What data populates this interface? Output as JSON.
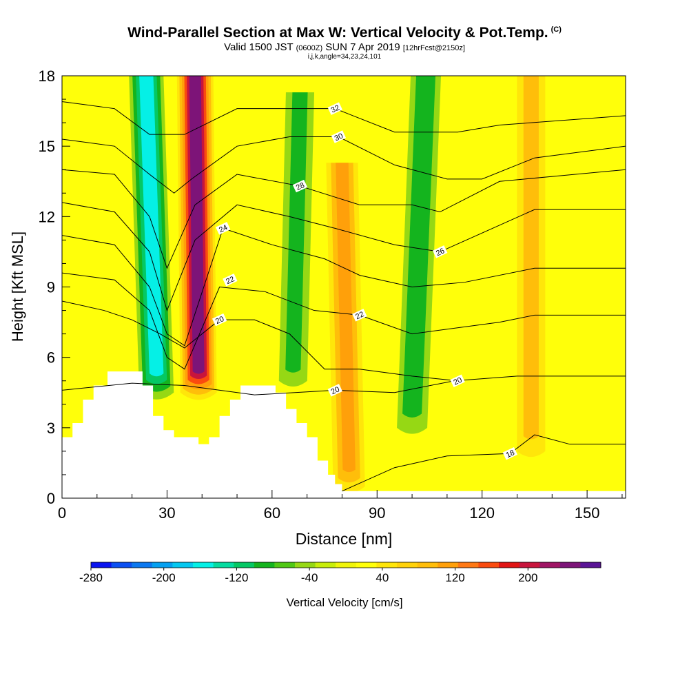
{
  "header": {
    "title": "Wind-Parallel Section at Max W: Vertical Velocity & Pot.Temp.",
    "copyright": "(C)",
    "valid_prefix": "Valid 1500 JST",
    "valid_utc": "(0600Z)",
    "valid_date": "SUN 7 Apr 2019",
    "forecast": "[12hrFcst@2150z]",
    "indices": "i,j,k,angle=34,23,24,101"
  },
  "colors": {
    "w_scale": [
      "#0a14f0",
      "#0c50f2",
      "#0c78f0",
      "#05a0f0",
      "#05c8f0",
      "#05f0e6",
      "#05dca0",
      "#05c864",
      "#14b41e",
      "#50c814",
      "#96d814",
      "#c8ee0a",
      "#f0f50a",
      "#ffff0a",
      "#ffe60a",
      "#ffd20a",
      "#ffbe0a",
      "#ffa00a",
      "#ff7814",
      "#fa4b0f",
      "#e11414",
      "#c8143c",
      "#a01464",
      "#7d1478",
      "#5a1496"
    ]
  },
  "chart_data": {
    "type": "heatmap",
    "xlabel": "Distance [nm]",
    "ylabel": "Height [Kft MSL]",
    "xlim": [
      0,
      161
    ],
    "ylim": [
      0,
      18
    ],
    "xticks": [
      0,
      30,
      60,
      90,
      120,
      150
    ],
    "yticks": [
      0,
      3,
      6,
      9,
      12,
      15,
      18
    ],
    "colorbar": {
      "label": "Vertical Velocity [cm/s]",
      "min": -280,
      "max": 280,
      "tick_values": [
        -280,
        -200,
        -120,
        -40,
        40,
        120,
        200
      ],
      "tick_labels": [
        "-280",
        "-200",
        "-120",
        "-40",
        "40",
        "120",
        "200"
      ]
    },
    "terrain": [
      [
        0,
        2.6
      ],
      [
        3,
        2.6
      ],
      [
        3,
        3.2
      ],
      [
        6,
        3.2
      ],
      [
        6,
        4.2
      ],
      [
        9,
        4.2
      ],
      [
        9,
        4.8
      ],
      [
        13,
        4.8
      ],
      [
        13,
        5.4
      ],
      [
        23,
        5.4
      ],
      [
        23,
        4.8
      ],
      [
        26,
        4.8
      ],
      [
        26,
        3.5
      ],
      [
        29,
        3.5
      ],
      [
        29,
        2.9
      ],
      [
        32,
        2.9
      ],
      [
        32,
        2.6
      ],
      [
        39,
        2.6
      ],
      [
        39,
        2.3
      ],
      [
        42,
        2.3
      ],
      [
        42,
        2.6
      ],
      [
        45,
        2.6
      ],
      [
        45,
        3.5
      ],
      [
        48,
        3.5
      ],
      [
        48,
        4.2
      ],
      [
        51,
        4.2
      ],
      [
        51,
        4.8
      ],
      [
        61,
        4.8
      ],
      [
        61,
        4.5
      ],
      [
        64,
        4.5
      ],
      [
        64,
        3.8
      ],
      [
        67,
        3.8
      ],
      [
        67,
        3.2
      ],
      [
        70,
        3.2
      ],
      [
        70,
        2.6
      ],
      [
        73,
        2.6
      ],
      [
        73,
        1.6
      ],
      [
        76,
        1.6
      ],
      [
        76,
        1.0
      ],
      [
        78,
        1.0
      ],
      [
        78,
        0.6
      ],
      [
        80,
        0.6
      ],
      [
        80,
        0.3
      ],
      [
        161,
        0.3
      ]
    ],
    "w_features": [
      {
        "kind": "updraft",
        "peak_cm_s": 270,
        "x_top": 38,
        "x_bottom": 39,
        "y_top": 18,
        "y_bottom": 4.5
      },
      {
        "kind": "downdraft",
        "peak_cm_s": -190,
        "x_top": 24,
        "x_bottom": 27,
        "y_top": 18,
        "y_bottom": 4.5
      },
      {
        "kind": "downdraft",
        "peak_cm_s": -90,
        "x_top": 68,
        "x_bottom": 66,
        "y_top": 17,
        "y_bottom": 5
      },
      {
        "kind": "updraft",
        "peak_cm_s": 130,
        "x_top": 80,
        "x_bottom": 82,
        "y_top": 14,
        "y_bottom": 0.5
      },
      {
        "kind": "downdraft",
        "peak_cm_s": -110,
        "x_top": 104,
        "x_bottom": 100,
        "y_top": 18,
        "y_bottom": 3
      },
      {
        "kind": "updraft",
        "peak_cm_s": 90,
        "x_top": 134,
        "x_bottom": 134,
        "y_top": 18,
        "y_bottom": 2
      }
    ],
    "theta_contours": [
      {
        "label": "18",
        "label_at": [
          128,
          1.9
        ],
        "points": [
          [
            80,
            0.3
          ],
          [
            95,
            1.3
          ],
          [
            110,
            1.8
          ],
          [
            128,
            1.9
          ],
          [
            135,
            2.7
          ],
          [
            145,
            2.3
          ],
          [
            161,
            2.3
          ]
        ]
      },
      {
        "label": "20",
        "label_at": [
          78,
          4.6
        ],
        "points": [
          [
            0,
            4.6
          ],
          [
            20,
            4.9
          ],
          [
            35,
            4.8
          ],
          [
            55,
            4.4
          ],
          [
            78,
            4.6
          ],
          [
            95,
            4.5
          ],
          [
            112,
            5.0
          ],
          [
            130,
            5.2
          ],
          [
            161,
            5.2
          ]
        ]
      },
      {
        "label": "20",
        "label_at": [
          45,
          7.6
        ],
        "points": [
          [
            0,
            8.4
          ],
          [
            12,
            8.0
          ],
          [
            20,
            7.6
          ],
          [
            28,
            7.0
          ],
          [
            35,
            6.4
          ],
          [
            45,
            7.6
          ],
          [
            55,
            7.6
          ],
          [
            65,
            7.0
          ],
          [
            75,
            5.5
          ],
          [
            85,
            5.5
          ]
        ]
      },
      {
        "label": "20",
        "label_at": [
          113,
          5.0
        ],
        "points": [
          [
            85,
            5.5
          ],
          [
            100,
            5.2
          ],
          [
            113,
            5.0
          ]
        ]
      },
      {
        "label": "22",
        "label_at": [
          85,
          7.8
        ],
        "points": [
          [
            0,
            9.6
          ],
          [
            15,
            9.3
          ],
          [
            25,
            8.0
          ],
          [
            30,
            6.0
          ],
          [
            35,
            5.5
          ],
          [
            45,
            9.0
          ],
          [
            58,
            8.8
          ],
          [
            72,
            8.0
          ],
          [
            85,
            7.8
          ],
          [
            100,
            7.0
          ],
          [
            125,
            7.5
          ],
          [
            135,
            7.8
          ],
          [
            161,
            7.8
          ]
        ]
      },
      {
        "label": "22",
        "label_at": [
          48,
          9.3
        ],
        "points": []
      },
      {
        "label": "24",
        "label_at": [
          46,
          11.5
        ],
        "points": [
          [
            0,
            11.2
          ],
          [
            15,
            10.8
          ],
          [
            25,
            9.0
          ],
          [
            30,
            7.0
          ],
          [
            35,
            6.5
          ],
          [
            46,
            11.5
          ],
          [
            60,
            10.8
          ],
          [
            75,
            10.2
          ],
          [
            85,
            9.5
          ],
          [
            100,
            9.0
          ],
          [
            115,
            9.2
          ],
          [
            135,
            9.8
          ],
          [
            161,
            9.8
          ]
        ]
      },
      {
        "label": "26",
        "label_at": [
          108,
          10.5
        ],
        "points": [
          [
            0,
            12.6
          ],
          [
            15,
            12.2
          ],
          [
            25,
            10.5
          ],
          [
            30,
            8.0
          ],
          [
            38,
            11.0
          ],
          [
            50,
            12.5
          ],
          [
            65,
            12.0
          ],
          [
            78,
            11.5
          ],
          [
            95,
            10.8
          ],
          [
            108,
            10.5
          ],
          [
            120,
            11.3
          ],
          [
            135,
            12.3
          ],
          [
            161,
            12.3
          ]
        ]
      },
      {
        "label": "28",
        "label_at": [
          68,
          13.3
        ],
        "points": [
          [
            0,
            14.0
          ],
          [
            15,
            13.8
          ],
          [
            25,
            12.0
          ],
          [
            30,
            9.8
          ],
          [
            38,
            12.5
          ],
          [
            50,
            13.8
          ],
          [
            68,
            13.3
          ],
          [
            85,
            12.5
          ],
          [
            100,
            12.5
          ],
          [
            108,
            12.2
          ],
          [
            125,
            13.5
          ],
          [
            161,
            14.0
          ]
        ]
      },
      {
        "label": "30",
        "label_at": [
          79,
          15.4
        ],
        "points": [
          [
            0,
            15.3
          ],
          [
            15,
            15.0
          ],
          [
            25,
            13.8
          ],
          [
            32,
            13.0
          ],
          [
            37,
            13.6
          ],
          [
            50,
            15.0
          ],
          [
            65,
            15.4
          ],
          [
            79,
            15.4
          ],
          [
            95,
            14.2
          ],
          [
            110,
            13.6
          ],
          [
            120,
            13.6
          ],
          [
            135,
            14.5
          ],
          [
            161,
            15.0
          ]
        ]
      },
      {
        "label": "32",
        "label_at": [
          78,
          16.6
        ],
        "points": [
          [
            0,
            16.9
          ],
          [
            15,
            16.6
          ],
          [
            25,
            15.5
          ],
          [
            35,
            15.5
          ],
          [
            50,
            16.6
          ],
          [
            65,
            16.6
          ],
          [
            78,
            16.6
          ],
          [
            95,
            15.6
          ],
          [
            113,
            15.6
          ],
          [
            125,
            15.9
          ],
          [
            161,
            16.3
          ]
        ]
      }
    ]
  }
}
